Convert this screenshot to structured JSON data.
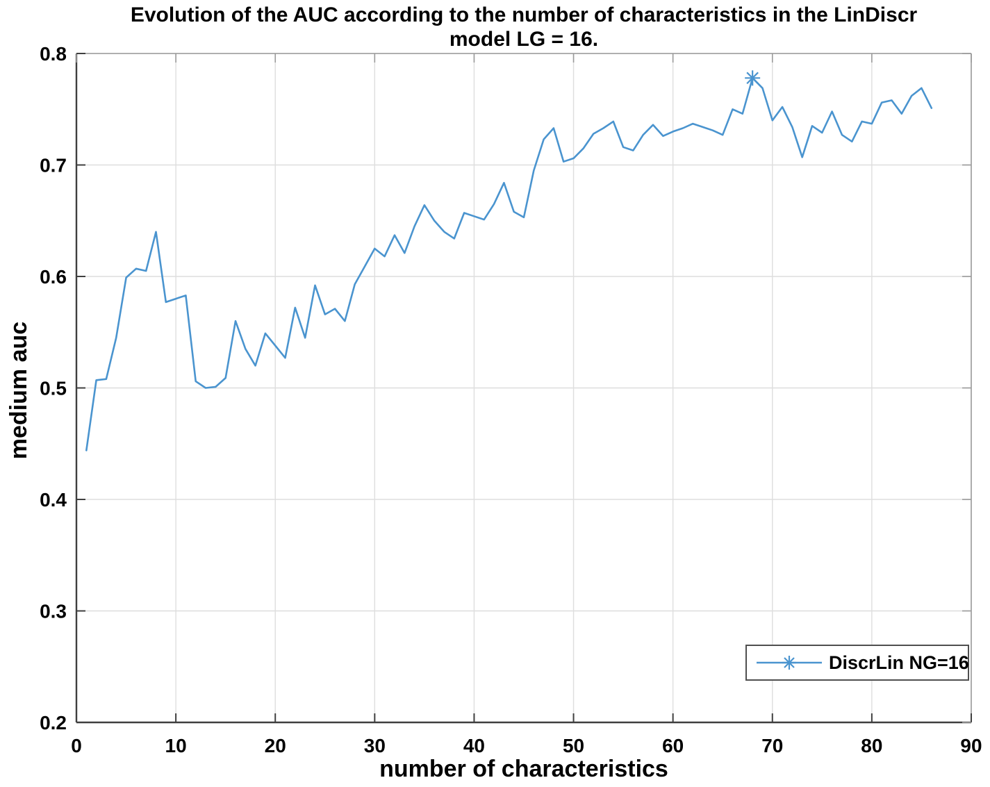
{
  "figure": {
    "background": "#ffffff"
  },
  "chart_data": {
    "type": "line",
    "title": "Evolution of the AUC according to the number of characteristics in the LinDiscr model LG = 16.",
    "title_lines": [
      "Evolution of the AUC according to the number of characteristics in the LinDiscr",
      "model LG = 16."
    ],
    "xlabel": "number of characteristics",
    "ylabel": "medium auc",
    "xlim": [
      0,
      90
    ],
    "ylim": [
      0.2,
      0.8
    ],
    "x_ticks": [
      0,
      10,
      20,
      30,
      40,
      50,
      60,
      70,
      80,
      90
    ],
    "y_ticks": [
      0.2,
      0.3,
      0.4,
      0.5,
      0.6,
      0.7,
      0.8
    ],
    "grid": true,
    "legend_position": "bottom-right",
    "colors": {
      "line": "#4a94cf",
      "grid": "#dedede",
      "axis_dark": "#3f3f3f",
      "axis_light": "#9a9a9a",
      "text": "#000000",
      "legend_border": "#4f4f4f"
    },
    "legend": {
      "entries": [
        {
          "label": "DiscrLin NG=16",
          "marker": "asterisk-on-line"
        }
      ]
    },
    "peak_marker": {
      "x": 68,
      "y": 0.778
    },
    "series": [
      {
        "name": "DiscrLin NG=16",
        "x": [
          1,
          2,
          3,
          4,
          5,
          6,
          7,
          8,
          9,
          10,
          11,
          12,
          13,
          14,
          15,
          16,
          17,
          18,
          19,
          20,
          21,
          22,
          23,
          24,
          25,
          26,
          27,
          28,
          29,
          30,
          31,
          32,
          33,
          34,
          35,
          36,
          37,
          38,
          39,
          40,
          41,
          42,
          43,
          44,
          45,
          46,
          47,
          48,
          49,
          50,
          51,
          52,
          53,
          54,
          55,
          56,
          57,
          58,
          59,
          60,
          61,
          62,
          63,
          64,
          65,
          66,
          67,
          68,
          69,
          70,
          71,
          72,
          73,
          74,
          75,
          76,
          77,
          78,
          79,
          80,
          81,
          82,
          83,
          84,
          85,
          86
        ],
        "y": [
          0.444,
          0.507,
          0.508,
          0.545,
          0.599,
          0.607,
          0.605,
          0.64,
          0.577,
          0.58,
          0.583,
          0.506,
          0.5,
          0.501,
          0.509,
          0.56,
          0.535,
          0.52,
          0.549,
          0.538,
          0.527,
          0.572,
          0.545,
          0.592,
          0.566,
          0.571,
          0.56,
          0.593,
          0.609,
          0.625,
          0.618,
          0.637,
          0.621,
          0.645,
          0.664,
          0.65,
          0.64,
          0.634,
          0.657,
          0.654,
          0.651,
          0.665,
          0.684,
          0.658,
          0.653,
          0.695,
          0.723,
          0.733,
          0.703,
          0.706,
          0.715,
          0.728,
          0.733,
          0.739,
          0.716,
          0.713,
          0.727,
          0.736,
          0.726,
          0.73,
          0.733,
          0.737,
          0.734,
          0.731,
          0.727,
          0.75,
          0.746,
          0.778,
          0.769,
          0.74,
          0.752,
          0.734,
          0.707,
          0.735,
          0.729,
          0.748,
          0.727,
          0.721,
          0.739,
          0.737,
          0.756,
          0.758,
          0.746,
          0.762,
          0.769,
          0.751
        ]
      }
    ]
  }
}
